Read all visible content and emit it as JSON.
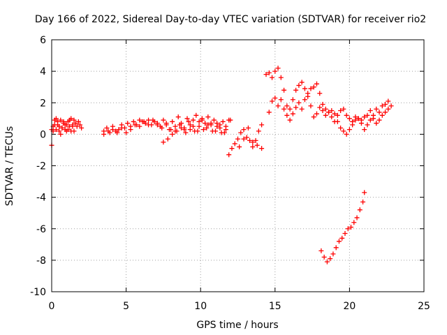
{
  "chart_data": {
    "type": "scatter",
    "title": "Day 166 of 2022, Sidereal Day-to-day VTEC variation (SDTVAR) for receiver rio2",
    "xlabel": "GPS time / hours",
    "ylabel": "SDTVAR / TECUs",
    "xlim": [
      0,
      25
    ],
    "ylim": [
      -10,
      6
    ],
    "xticks": [
      "0",
      "5",
      "10",
      "15",
      "20",
      "25"
    ],
    "yticks": [
      "-10",
      "-8",
      "-6",
      "-4",
      "-2",
      "0",
      "2",
      "4",
      "6"
    ],
    "grid": true,
    "marker": "+",
    "color": "#ff0000",
    "series": [
      {
        "name": "SDTVAR",
        "x": [
          0.0,
          0.1,
          0.2,
          0.3,
          0.4,
          0.5,
          0.6,
          0.7,
          0.8,
          0.9,
          1.0,
          1.1,
          1.2,
          1.3,
          1.4,
          1.5,
          1.6,
          1.7,
          1.8,
          1.9,
          2.0,
          0.0,
          0.1,
          0.2,
          0.3,
          0.4,
          0.5,
          0.6,
          0.7,
          0.8,
          0.9,
          1.0,
          1.1,
          1.2,
          1.3,
          1.4,
          1.5,
          3.5,
          3.7,
          3.9,
          4.1,
          4.3,
          4.5,
          4.7,
          4.9,
          5.1,
          5.3,
          5.5,
          5.7,
          5.9,
          6.1,
          6.3,
          6.5,
          6.7,
          6.9,
          7.1,
          7.3,
          7.5,
          7.7,
          7.9,
          8.1,
          8.3,
          8.5,
          8.7,
          8.9,
          9.1,
          9.3,
          9.5,
          9.7,
          9.9,
          10.1,
          10.3,
          10.5,
          10.7,
          10.9,
          11.1,
          11.3,
          11.5,
          11.7,
          11.9,
          3.5,
          3.8,
          4.1,
          4.4,
          4.7,
          5.0,
          5.3,
          5.6,
          5.9,
          6.2,
          6.5,
          6.8,
          7.1,
          7.4,
          7.7,
          8.0,
          8.3,
          8.6,
          8.9,
          9.2,
          9.5,
          9.8,
          10.1,
          10.4,
          10.7,
          11.0,
          11.3,
          11.6,
          7.5,
          7.8,
          8.1,
          8.4,
          8.7,
          9.0,
          9.3,
          9.6,
          9.9,
          10.2,
          10.5,
          10.8,
          11.1,
          11.4,
          11.7,
          12.0,
          11.9,
          12.1,
          12.3,
          12.5,
          12.7,
          12.9,
          13.1,
          13.3,
          13.5,
          13.7,
          13.9,
          14.1,
          12.6,
          12.9,
          13.2,
          13.5,
          13.8,
          14.1,
          14.4,
          14.6,
          14.8,
          15.0,
          15.2,
          15.4,
          15.6,
          15.8,
          16.0,
          16.2,
          16.4,
          16.6,
          16.8,
          17.0,
          17.2,
          17.4,
          17.6,
          17.8,
          18.0,
          18.2,
          18.4,
          18.6,
          18.8,
          19.0,
          19.2,
          19.4,
          19.6,
          19.8,
          20.0,
          20.2,
          20.4,
          20.6,
          20.8,
          21.0,
          21.2,
          21.4,
          21.6,
          21.8,
          22.0,
          22.2,
          22.4,
          22.6,
          22.8,
          14.6,
          14.8,
          15.0,
          15.2,
          15.4,
          15.6,
          15.8,
          16.0,
          16.2,
          16.4,
          16.6,
          16.8,
          17.0,
          17.2,
          17.4,
          17.6,
          17.8,
          18.0,
          18.2,
          18.4,
          18.6,
          18.8,
          19.0,
          19.2,
          19.4,
          19.6,
          19.8,
          20.0,
          20.2,
          20.4,
          20.6,
          20.8,
          21.0,
          21.2,
          21.4,
          21.6,
          21.8,
          22.0,
          22.2,
          22.4,
          22.6,
          18.1,
          18.3,
          18.5,
          18.7,
          18.9,
          19.1,
          19.3,
          19.5,
          19.7,
          19.9,
          20.1,
          20.3,
          20.5,
          20.7,
          20.9,
          21.0
        ],
        "y": [
          -0.7,
          0.2,
          0.6,
          0.3,
          0.8,
          0.5,
          0.9,
          0.4,
          0.7,
          0.3,
          0.6,
          0.8,
          0.5,
          0.2,
          0.6,
          0.9,
          0.7,
          0.5,
          0.8,
          0.6,
          0.4,
          0.3,
          0.5,
          0.9,
          1.0,
          0.6,
          0.2,
          0.0,
          0.4,
          0.8,
          0.6,
          0.2,
          0.3,
          0.9,
          1.0,
          0.5,
          0.2,
          0.2,
          0.4,
          0.1,
          0.5,
          0.2,
          0.3,
          0.6,
          0.4,
          0.7,
          0.5,
          0.8,
          0.6,
          0.9,
          0.8,
          0.7,
          0.9,
          0.6,
          0.8,
          0.7,
          0.5,
          0.9,
          0.6,
          0.3,
          0.8,
          0.5,
          1.1,
          0.7,
          0.4,
          1.0,
          0.6,
          0.9,
          1.2,
          0.8,
          1.0,
          0.7,
          1.1,
          0.6,
          0.9,
          0.7,
          0.4,
          0.8,
          0.5,
          0.9,
          0.0,
          0.2,
          0.3,
          0.1,
          0.4,
          0.1,
          0.3,
          0.6,
          0.5,
          0.8,
          0.6,
          0.9,
          0.6,
          0.4,
          0.7,
          0.3,
          0.2,
          0.6,
          0.3,
          0.8,
          0.5,
          0.2,
          0.9,
          0.4,
          0.7,
          0.2,
          0.6,
          0.1,
          -0.5,
          -0.3,
          0.0,
          0.2,
          0.4,
          0.1,
          0.3,
          0.2,
          0.5,
          0.3,
          0.6,
          0.2,
          0.5,
          0.1,
          0.3,
          0.9,
          -1.3,
          -0.9,
          -0.6,
          -0.3,
          0.1,
          0.3,
          -0.2,
          -0.4,
          -0.8,
          -0.4,
          0.2,
          0.6,
          -0.8,
          -0.3,
          0.4,
          -0.5,
          -0.7,
          -0.9,
          3.8,
          3.9,
          3.6,
          4.0,
          4.2,
          3.6,
          2.8,
          1.8,
          1.6,
          2.2,
          2.8,
          3.1,
          3.3,
          2.9,
          2.4,
          2.9,
          3.0,
          3.2,
          2.6,
          1.9,
          1.6,
          1.4,
          1.1,
          0.8,
          1.2,
          1.5,
          1.6,
          1.2,
          1.0,
          0.8,
          1.1,
          1.0,
          0.9,
          1.1,
          1.2,
          1.5,
          1.2,
          1.6,
          1.4,
          1.8,
          1.9,
          2.1,
          1.8,
          1.4,
          2.1,
          2.3,
          1.8,
          2.2,
          1.6,
          1.2,
          0.9,
          1.3,
          1.7,
          2.0,
          1.6,
          2.2,
          2.6,
          1.8,
          1.1,
          1.3,
          1.7,
          1.5,
          1.2,
          1.4,
          1.5,
          1.3,
          0.8,
          0.4,
          0.2,
          0.0,
          0.3,
          0.6,
          0.9,
          1.0,
          0.7,
          0.3,
          0.6,
          0.9,
          1.0,
          0.7,
          0.9,
          1.2,
          1.4,
          1.6,
          -7.4,
          -7.8,
          -8.1,
          -7.9,
          -7.6,
          -7.2,
          -6.8,
          -6.6,
          -6.3,
          -6.0,
          -5.9,
          -5.6,
          -5.3,
          -4.8,
          -4.3,
          -3.7
        ]
      }
    ]
  }
}
